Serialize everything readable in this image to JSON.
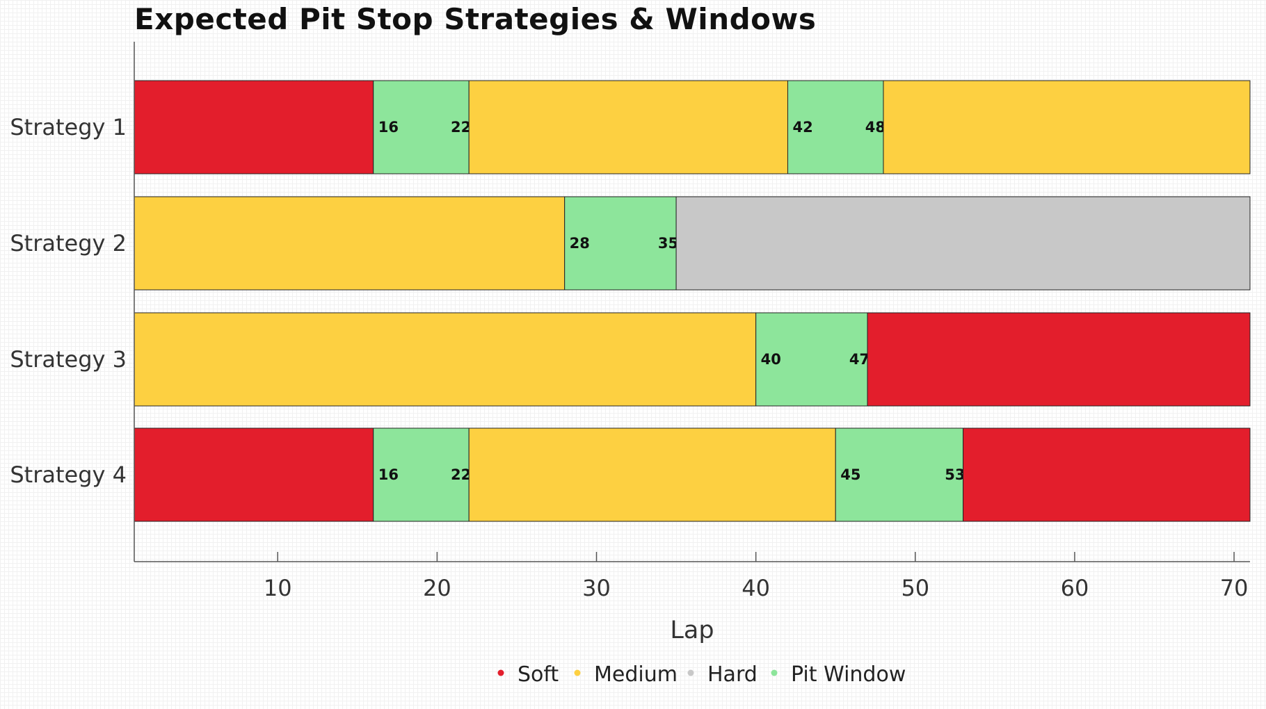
{
  "chart_data": {
    "type": "bar",
    "orientation": "horizontal-stacked",
    "title": "Expected Pit Stop Strategies & Windows",
    "xlabel": "Lap",
    "ylabel": "",
    "xlim": [
      1,
      71
    ],
    "xticks": [
      10,
      20,
      30,
      40,
      50,
      60,
      70
    ],
    "grid": false,
    "legend_position": "bottom",
    "categories": [
      "Strategy 1",
      "Strategy 2",
      "Strategy 3",
      "Strategy 4"
    ],
    "legend": [
      {
        "key": "soft",
        "label": "Soft",
        "color": "#e31e2c"
      },
      {
        "key": "medium",
        "label": "Medium",
        "color": "#fdd041"
      },
      {
        "key": "hard",
        "label": "Hard",
        "color": "#c8c8c8"
      },
      {
        "key": "pit",
        "label": "Pit Window",
        "color": "#8de59b"
      }
    ],
    "strategies": [
      {
        "name": "Strategy 1",
        "segments": [
          {
            "compound": "soft",
            "start": 1,
            "end": 16
          },
          {
            "compound": "pit",
            "start": 16,
            "end": 22
          },
          {
            "compound": "medium",
            "start": 22,
            "end": 42
          },
          {
            "compound": "pit",
            "start": 42,
            "end": 48
          },
          {
            "compound": "medium",
            "start": 48,
            "end": 71
          }
        ]
      },
      {
        "name": "Strategy 2",
        "segments": [
          {
            "compound": "medium",
            "start": 1,
            "end": 28
          },
          {
            "compound": "pit",
            "start": 28,
            "end": 35
          },
          {
            "compound": "hard",
            "start": 35,
            "end": 71
          }
        ]
      },
      {
        "name": "Strategy 3",
        "segments": [
          {
            "compound": "medium",
            "start": 1,
            "end": 40
          },
          {
            "compound": "pit",
            "start": 40,
            "end": 47
          },
          {
            "compound": "soft",
            "start": 47,
            "end": 71
          }
        ]
      },
      {
        "name": "Strategy 4",
        "segments": [
          {
            "compound": "soft",
            "start": 1,
            "end": 16
          },
          {
            "compound": "pit",
            "start": 16,
            "end": 22
          },
          {
            "compound": "medium",
            "start": 22,
            "end": 45
          },
          {
            "compound": "pit",
            "start": 45,
            "end": 53
          },
          {
            "compound": "soft",
            "start": 53,
            "end": 71
          }
        ]
      }
    ]
  }
}
